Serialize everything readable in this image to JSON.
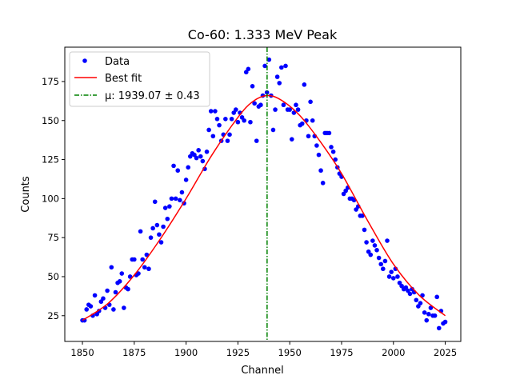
{
  "chart_data": {
    "type": "scatter",
    "title": "Co-60: 1.333 MeV Peak",
    "xlabel": "Channel",
    "ylabel": "Counts",
    "xlim": [
      1841.5,
      2032.5
    ],
    "ylim": [
      8.5,
      197
    ],
    "xticks": [
      1850,
      1875,
      1900,
      1925,
      1950,
      1975,
      2000,
      2025
    ],
    "yticks": [
      25,
      50,
      75,
      100,
      125,
      150,
      175
    ],
    "grid": false,
    "legend_placement": "top-left",
    "legend": [
      "Data",
      "Best fit",
      "μ: 1939.07 ± 0.43"
    ],
    "colors": {
      "data": "#0000ff",
      "fit": "#ff0000",
      "mu": "#008000"
    },
    "data": {
      "x_start": 1850,
      "x_step": 1,
      "y": [
        22,
        22,
        29,
        32,
        31,
        25,
        38,
        26,
        28,
        34,
        36,
        30,
        41,
        32,
        56,
        29,
        40,
        46,
        47,
        52,
        30,
        43,
        42,
        50,
        61,
        61,
        51,
        52,
        79,
        61,
        56,
        64,
        55,
        75,
        81,
        98,
        83,
        77,
        72,
        82,
        94,
        87,
        95,
        100,
        121,
        100,
        118,
        99,
        104,
        97,
        112,
        120,
        127,
        129,
        128,
        126,
        131,
        127,
        124,
        119,
        130,
        144,
        156,
        140,
        156,
        151,
        147,
        137,
        141,
        151,
        137,
        141,
        151,
        155,
        157,
        149,
        155,
        152,
        150,
        181,
        183,
        149,
        172,
        161,
        137,
        159,
        160,
        166,
        185,
        168,
        189,
        166,
        144,
        157,
        178,
        174,
        184,
        160,
        185,
        157,
        157,
        138,
        155,
        160,
        157,
        147,
        148,
        173,
        150,
        140,
        162,
        150,
        140,
        134,
        128,
        118,
        110,
        142,
        142,
        142,
        133,
        130,
        125,
        120,
        116,
        114,
        103,
        105,
        107,
        100,
        100,
        99,
        93,
        95,
        89,
        89,
        80,
        72,
        66,
        64,
        73,
        70,
        67,
        62,
        58,
        55,
        60,
        73,
        50,
        53,
        49,
        55,
        50,
        46,
        44,
        42,
        43,
        41,
        39,
        42,
        40,
        35,
        31,
        33,
        38,
        27,
        22,
        26,
        30,
        25,
        25,
        37,
        17,
        28,
        20,
        21
      ]
    },
    "fit": {
      "x": [
        1850,
        1862.5,
        1875,
        1887.5,
        1900,
        1912.5,
        1925,
        1932,
        1939.07,
        1946,
        1955,
        1965,
        1975,
        1987.5,
        2000,
        2012.5,
        2025
      ],
      "y": [
        22,
        33,
        51,
        74,
        100,
        128,
        152,
        162,
        166,
        163,
        153,
        136,
        116,
        86,
        58,
        38,
        25
      ]
    },
    "mu": 1939.07,
    "mu_err": 0.43
  }
}
